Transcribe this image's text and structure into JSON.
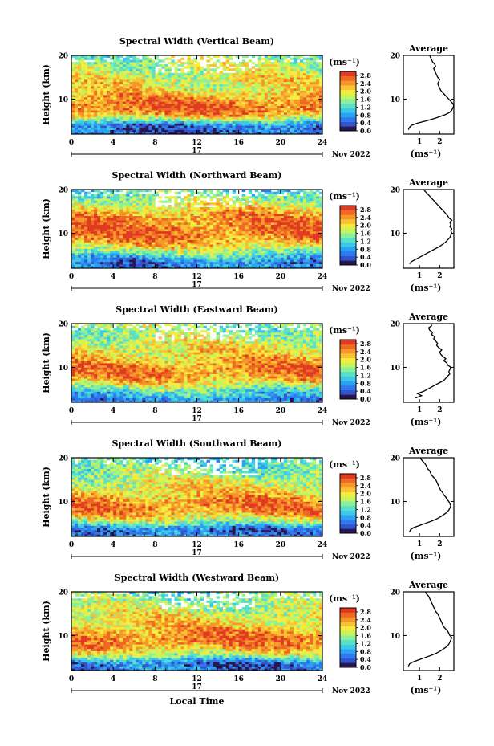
{
  "figure": {
    "ylabel": "Height (km)",
    "xlabel": "Local Time",
    "date_day": "17",
    "date_month_year": "Nov 2022",
    "unit_label": "(ms⁻¹)",
    "avg_title": "Average",
    "avg_unit": "(ms⁻¹)"
  },
  "colormap": [
    "#2a1650",
    "#3355cc",
    "#2f78ee",
    "#2aa4f2",
    "#3cc8e6",
    "#5ae0c8",
    "#8cf09a",
    "#c4f45e",
    "#f4ec3e",
    "#f8c232",
    "#f69828",
    "#ee6a24",
    "#e03a22"
  ],
  "chart_data": [
    {
      "type": "heatmap",
      "title": "Spectral Width (Vertical Beam)",
      "x_range": [
        0,
        24
      ],
      "x_ticks": [
        0,
        4,
        8,
        12,
        16,
        20,
        24
      ],
      "y_range": [
        2,
        20
      ],
      "y_ticks": [
        10,
        20
      ],
      "colorbar_ticks": [
        "0.0",
        "0.4",
        "0.8",
        "1.2",
        "1.6",
        "2.0",
        "2.4",
        "2.8"
      ],
      "colorbar_range": [
        0.0,
        3.0
      ],
      "base_level": 0.45,
      "avg_profile": {
        "x_ticks": [
          1,
          2
        ],
        "x_range": [
          0.2,
          2.7
        ],
        "height": [
          3,
          3.5,
          4,
          4.5,
          5,
          5.5,
          6,
          6.5,
          7,
          7.5,
          8,
          8.5,
          9,
          9.5,
          10,
          10.5,
          11,
          11.5,
          12,
          12.5,
          13,
          13.5,
          14,
          14.5,
          15,
          15.5,
          16,
          16.5,
          17,
          17.5,
          18,
          18.5,
          19,
          19.5,
          20
        ],
        "values": [
          0.45,
          0.5,
          0.6,
          0.9,
          1.3,
          1.7,
          2.0,
          2.3,
          2.5,
          2.6,
          2.65,
          2.7,
          2.65,
          2.55,
          2.45,
          2.35,
          2.25,
          2.15,
          2.05,
          2.0,
          1.95,
          1.9,
          1.95,
          2.0,
          1.9,
          1.85,
          1.8,
          1.75,
          1.7,
          1.8,
          1.75,
          1.65,
          1.6,
          1.55,
          1.5
        ]
      }
    },
    {
      "type": "heatmap",
      "title": "Spectral Width (Northward Beam)",
      "x_range": [
        0,
        24
      ],
      "x_ticks": [
        0,
        4,
        8,
        12,
        16,
        20,
        24
      ],
      "y_range": [
        2,
        20
      ],
      "y_ticks": [
        10,
        20
      ],
      "colorbar_ticks": [
        "0.0",
        "0.4",
        "0.8",
        "1.2",
        "1.6",
        "2.0",
        "2.4",
        "2.8"
      ],
      "colorbar_range": [
        0.0,
        3.0
      ],
      "base_level": 0.7,
      "avg_profile": {
        "x_ticks": [
          1,
          2
        ],
        "x_range": [
          0.2,
          2.7
        ],
        "height": [
          3,
          3.5,
          4,
          4.5,
          5,
          5.5,
          6,
          6.5,
          7,
          7.5,
          8,
          8.5,
          9,
          9.5,
          10,
          10.5,
          11,
          11.5,
          12,
          12.5,
          13,
          13.5,
          14,
          14.5,
          15,
          15.5,
          16,
          16.5,
          17,
          17.5,
          18,
          18.5,
          19,
          19.5,
          20
        ],
        "values": [
          0.5,
          0.6,
          0.8,
          1.0,
          1.2,
          1.4,
          1.6,
          1.8,
          2.0,
          2.15,
          2.3,
          2.4,
          2.5,
          2.55,
          2.6,
          2.55,
          2.6,
          2.5,
          2.55,
          2.5,
          2.6,
          2.45,
          2.4,
          2.3,
          2.2,
          2.1,
          2.0,
          1.9,
          1.8,
          1.7,
          1.6,
          1.5,
          1.4,
          1.3,
          1.2
        ]
      }
    },
    {
      "type": "heatmap",
      "title": "Spectral Width (Eastward Beam)",
      "x_range": [
        0,
        24
      ],
      "x_ticks": [
        0,
        4,
        8,
        12,
        16,
        20,
        24
      ],
      "y_range": [
        2,
        20
      ],
      "y_ticks": [
        10,
        20
      ],
      "colorbar_ticks": [
        "0.0",
        "0.4",
        "0.8",
        "1.2",
        "1.6",
        "2.0",
        "2.4",
        "2.8"
      ],
      "colorbar_range": [
        0.0,
        3.0
      ],
      "base_level": 0.75,
      "avg_profile": {
        "x_ticks": [
          1,
          2
        ],
        "x_range": [
          0.2,
          2.7
        ],
        "height": [
          3,
          3.5,
          4,
          4.5,
          5,
          5.5,
          6,
          6.5,
          7,
          7.5,
          8,
          8.5,
          9,
          9.5,
          10,
          10.5,
          11,
          11.5,
          12,
          12.5,
          13,
          13.5,
          14,
          14.5,
          15,
          15.5,
          16,
          16.5,
          17,
          17.5,
          18,
          18.5,
          19,
          19.5,
          20
        ],
        "values": [
          0.8,
          1.1,
          0.9,
          1.2,
          1.4,
          1.6,
          1.8,
          2.0,
          2.2,
          2.3,
          2.4,
          2.5,
          2.45,
          2.5,
          2.55,
          2.4,
          2.35,
          2.2,
          2.3,
          2.15,
          2.05,
          2.0,
          2.1,
          1.95,
          1.85,
          1.9,
          1.8,
          1.7,
          1.75,
          1.6,
          1.65,
          1.5,
          1.45,
          1.6,
          1.55
        ]
      }
    },
    {
      "type": "heatmap",
      "title": "Spectral Width (Southward Beam)",
      "x_range": [
        0,
        24
      ],
      "x_ticks": [
        0,
        4,
        8,
        12,
        16,
        20,
        24
      ],
      "y_range": [
        2,
        20
      ],
      "y_ticks": [
        10,
        20
      ],
      "colorbar_ticks": [
        "0.0",
        "0.4",
        "0.8",
        "1.2",
        "1.6",
        "2.0",
        "2.4",
        "2.8"
      ],
      "colorbar_range": [
        0.0,
        3.0
      ],
      "base_level": 0.6,
      "avg_profile": {
        "x_ticks": [
          1,
          2
        ],
        "x_range": [
          0.2,
          2.7
        ],
        "height": [
          3,
          3.5,
          4,
          4.5,
          5,
          5.5,
          6,
          6.5,
          7,
          7.5,
          8,
          8.5,
          9,
          9.5,
          10,
          10.5,
          11,
          11.5,
          12,
          12.5,
          13,
          13.5,
          14,
          14.5,
          15,
          15.5,
          16,
          16.5,
          17,
          17.5,
          18,
          18.5,
          19,
          19.5,
          20
        ],
        "values": [
          0.5,
          0.55,
          0.7,
          1.0,
          1.3,
          1.6,
          1.85,
          2.05,
          2.2,
          2.35,
          2.45,
          2.5,
          2.55,
          2.5,
          2.45,
          2.35,
          2.3,
          2.2,
          2.15,
          2.05,
          2.0,
          1.95,
          1.9,
          1.85,
          1.8,
          1.7,
          1.6,
          1.55,
          1.5,
          1.4,
          1.35,
          1.3,
          1.2,
          1.1,
          1.05
        ]
      }
    },
    {
      "type": "heatmap",
      "title": "Spectral Width (Westward Beam)",
      "x_range": [
        0,
        24
      ],
      "x_ticks": [
        0,
        4,
        8,
        12,
        16,
        20,
        24
      ],
      "y_range": [
        2,
        20
      ],
      "y_ticks": [
        10,
        20
      ],
      "colorbar_ticks": [
        "0.0",
        "0.4",
        "0.8",
        "1.2",
        "1.6",
        "2.0",
        "2.4",
        "2.8"
      ],
      "colorbar_range": [
        0.0,
        3.0
      ],
      "base_level": 0.55,
      "avg_profile": {
        "x_ticks": [
          1,
          2
        ],
        "x_range": [
          0.2,
          2.7
        ],
        "height": [
          3,
          3.5,
          4,
          4.5,
          5,
          5.5,
          6,
          6.5,
          7,
          7.5,
          8,
          8.5,
          9,
          9.5,
          10,
          10.5,
          11,
          11.5,
          12,
          12.5,
          13,
          13.5,
          14,
          14.5,
          15,
          15.5,
          16,
          16.5,
          17,
          17.5,
          18,
          18.5,
          19,
          19.5,
          20
        ],
        "values": [
          0.45,
          0.5,
          0.7,
          1.0,
          1.3,
          1.6,
          1.85,
          2.05,
          2.2,
          2.35,
          2.45,
          2.5,
          2.55,
          2.6,
          2.5,
          2.45,
          2.4,
          2.3,
          2.2,
          2.15,
          2.1,
          2.05,
          2.0,
          1.95,
          1.9,
          1.8,
          1.75,
          1.7,
          1.65,
          1.6,
          1.55,
          1.5,
          1.45,
          1.35,
          1.3
        ]
      }
    }
  ]
}
